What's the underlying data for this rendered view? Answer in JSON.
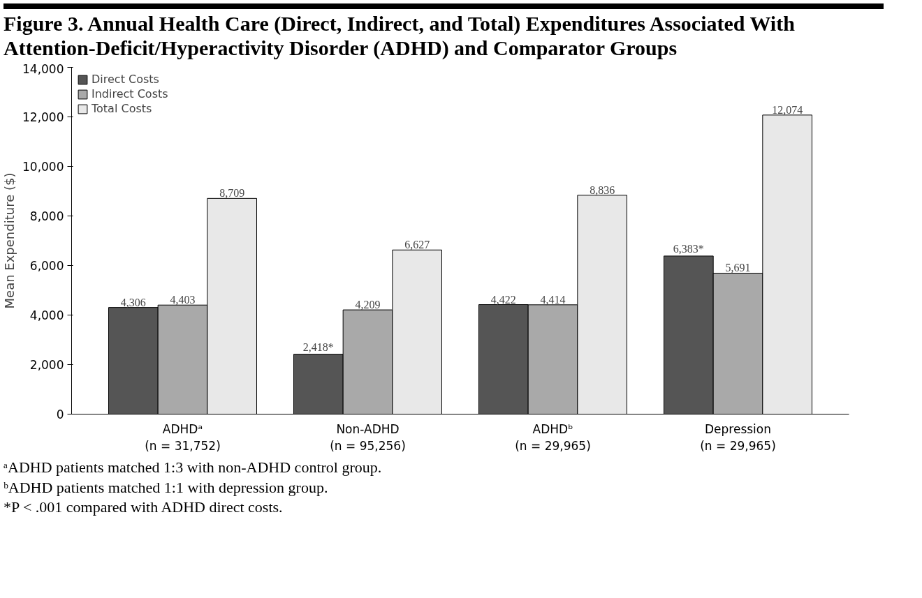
{
  "chart_data": {
    "type": "bar",
    "title": "Figure 3. Annual Health Care (Direct, Indirect, and Total) Expenditures Associated With Attention-Deficit/Hyperactivity Disorder (ADHD) and Comparator Groups",
    "ylabel": "Mean Expenditure ($)",
    "categories": [
      "ADHDᵃ\n(n = 31,752)",
      "Non-ADHD\n(n = 95,256)",
      "ADHDᵇ\n(n = 29,965)",
      "Depression\n(n = 29,965)"
    ],
    "series": [
      {
        "name": "Direct Costs",
        "color": "#555555",
        "values": [
          4306,
          2418,
          4422,
          6383
        ],
        "value_labels": [
          "4,306",
          "2,418*",
          "4,422",
          "6,383*"
        ]
      },
      {
        "name": "Indirect Costs",
        "color": "#a9a9a9",
        "values": [
          4403,
          4209,
          4414,
          5691
        ],
        "value_labels": [
          "4,403",
          "4,209",
          "4,414",
          "5,691"
        ]
      },
      {
        "name": "Total Costs",
        "color": "#e8e8e8",
        "values": [
          8709,
          6627,
          8836,
          12074
        ],
        "value_labels": [
          "8,709",
          "6,627",
          "8,836",
          "12,074"
        ]
      }
    ],
    "ylim": [
      0,
      14000
    ],
    "yticks": [
      0,
      {
        "value": 2000,
        "label": "2,000"
      },
      {
        "value": 4000,
        "label": "4,000"
      },
      {
        "value": 6000,
        "label": "6,000"
      },
      {
        "value": 8000,
        "label": "8,000"
      },
      {
        "value": 10000,
        "label": "10,000"
      },
      {
        "value": 12000,
        "label": "12,000"
      },
      {
        "value": 14000,
        "label": "14,000"
      }
    ],
    "grid": false,
    "legend": "top left",
    "annotations": [
      "ᵃADHD patients matched 1:3 with non-ADHD control group.",
      "ᵇADHD patients matched 1:1 with depression group.",
      "*P < .001 compared with ADHD direct costs."
    ]
  }
}
